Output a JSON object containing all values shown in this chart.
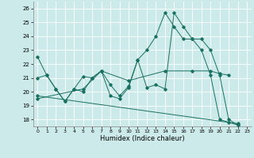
{
  "xlabel": "Humidex (Indice chaleur)",
  "xlim": [
    -0.5,
    23.5
  ],
  "ylim": [
    17.5,
    26.5
  ],
  "yticks": [
    18,
    19,
    20,
    21,
    22,
    23,
    24,
    25,
    26
  ],
  "xticks": [
    0,
    1,
    2,
    3,
    4,
    5,
    6,
    7,
    8,
    9,
    10,
    11,
    12,
    13,
    14,
    15,
    16,
    17,
    18,
    19,
    20,
    21,
    22,
    23
  ],
  "bg": "#cceaea",
  "grid_color": "#ffffff",
  "lc": "#1a7060",
  "line1_x": [
    0,
    1,
    2,
    3,
    4,
    5,
    6,
    7,
    8,
    9,
    10,
    11,
    12,
    13,
    14,
    15,
    16,
    17,
    18,
    19,
    20,
    21,
    22
  ],
  "line1_y": [
    22.5,
    21.2,
    20.2,
    19.3,
    20.2,
    20.0,
    21.0,
    21.5,
    19.7,
    19.5,
    20.3,
    22.3,
    23.0,
    24.0,
    25.7,
    24.7,
    23.8,
    23.8,
    23.0,
    21.2,
    18.0,
    17.8,
    17.6
  ],
  "line2_x": [
    0,
    1,
    2,
    3,
    4,
    5,
    6,
    7,
    8,
    9,
    10,
    11,
    12,
    13,
    14,
    15,
    16,
    17,
    18,
    19,
    20,
    21,
    22
  ],
  "line2_y": [
    21.0,
    21.2,
    20.2,
    19.3,
    20.2,
    21.1,
    21.0,
    21.5,
    20.5,
    19.7,
    20.4,
    22.3,
    20.3,
    20.5,
    20.2,
    25.7,
    24.7,
    23.8,
    23.8,
    23.0,
    21.2,
    18.0,
    17.6
  ],
  "line3_x": [
    0,
    5,
    7,
    10,
    14,
    17,
    19,
    20,
    21
  ],
  "line3_y": [
    19.5,
    20.2,
    21.5,
    20.8,
    21.5,
    21.5,
    21.5,
    21.3,
    21.2
  ],
  "line4_x": [
    0,
    22
  ],
  "line4_y": [
    19.7,
    17.7
  ]
}
